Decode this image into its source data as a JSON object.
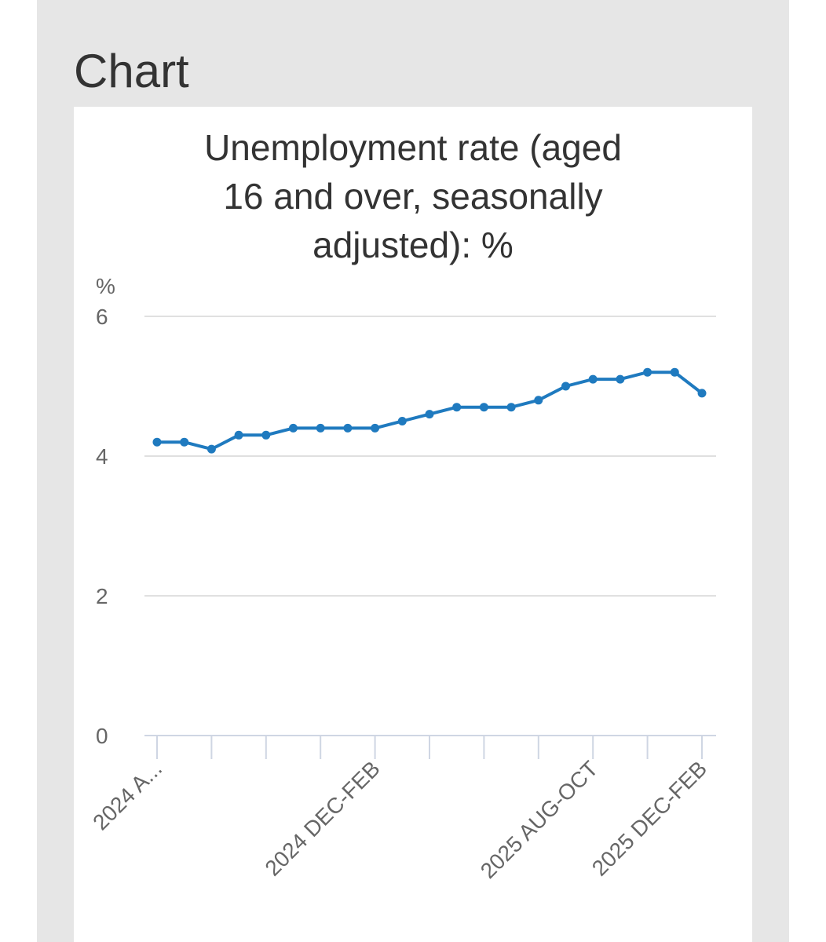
{
  "page": {
    "section_heading": "Chart"
  },
  "chart_data": {
    "type": "line",
    "title_lines": [
      "Unemployment rate (aged",
      "16 and over, seasonally",
      "adjusted): %"
    ],
    "y_unit_label": "%",
    "ylim": [
      0,
      6
    ],
    "y_ticks": [
      0,
      2,
      4,
      6
    ],
    "grid": "horizontal",
    "x_tick_labels": [
      {
        "index": 0,
        "label": "2024 A..."
      },
      {
        "index": 8,
        "label": "2024 DEC-FEB"
      },
      {
        "index": 16,
        "label": "2025 AUG-OCT"
      },
      {
        "index": 20,
        "label": "2025 DEC-FEB"
      }
    ],
    "series": [
      {
        "color": "#1f7abf",
        "values": [
          4.2,
          4.2,
          4.1,
          4.3,
          4.3,
          4.4,
          4.4,
          4.4,
          4.4,
          4.5,
          4.6,
          4.7,
          4.7,
          4.7,
          4.8,
          5.0,
          5.1,
          5.1,
          5.2,
          5.2,
          4.9
        ]
      }
    ]
  }
}
